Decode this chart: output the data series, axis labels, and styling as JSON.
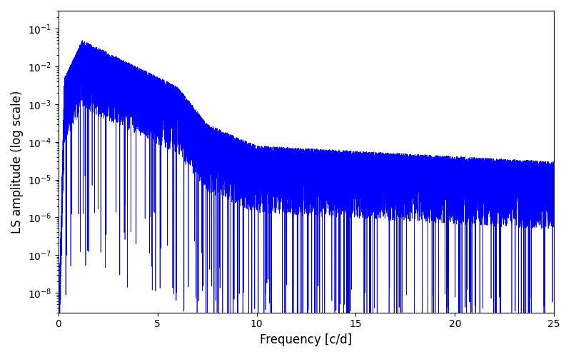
{
  "xlabel": "Frequency [c/d]",
  "ylabel": "LS amplitude (log scale)",
  "xlim": [
    0,
    25
  ],
  "ylim": [
    3e-09,
    0.3
  ],
  "line_color": "#0000ff",
  "line_width": 0.5,
  "yscale": "log",
  "figsize": [
    8.0,
    5.0
  ],
  "dpi": 100,
  "background_color": "#ffffff",
  "seed": 7,
  "n_points": 15000,
  "freq_max": 25.0,
  "envelope_segments": [
    {
      "f0": 0.0,
      "f1": 0.3,
      "a0": 1e-09,
      "a1": 0.005
    },
    {
      "f0": 0.3,
      "f1": 1.2,
      "a0": 0.005,
      "a1": 0.05
    },
    {
      "f0": 1.2,
      "f1": 6.0,
      "a0": 0.05,
      "a1": 0.003
    },
    {
      "f0": 6.0,
      "f1": 7.5,
      "a0": 0.003,
      "a1": 0.0003
    },
    {
      "f0": 7.5,
      "f1": 10.0,
      "a0": 0.0003,
      "a1": 8e-05
    },
    {
      "f0": 10.0,
      "f1": 25.0,
      "a0": 8e-05,
      "a1": 3e-05
    }
  ],
  "noise_spread_log": 1.8,
  "deep_dip_prob": 0.015,
  "deep_dip_decades": [
    3.5,
    6.0
  ]
}
